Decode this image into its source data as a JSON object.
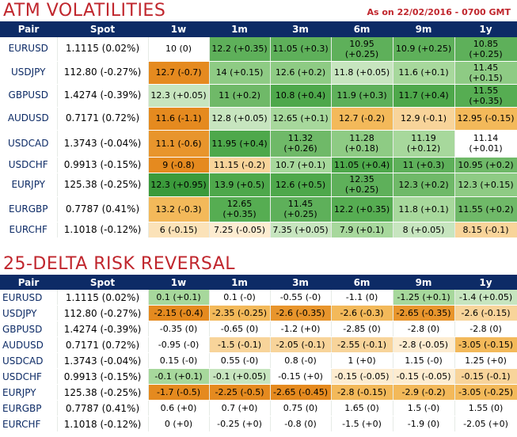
{
  "atm": {
    "title": "ATM VOLATILITIES",
    "as_of": "As on 22/02/2016 - 0700 GMT",
    "headers": [
      "Pair",
      "Spot",
      "1w",
      "1m",
      "3m",
      "6m",
      "9m",
      "1y"
    ],
    "rows": [
      {
        "pair": "EURUSD",
        "spot": "1.1115 (0.02%)",
        "cells": [
          {
            "text": "10 (0)",
            "bg": "#ffffff"
          },
          {
            "text": "12.2 (+0.35)",
            "bg": "#5eb05a"
          },
          {
            "text": "11.05 (+0.3)",
            "bg": "#5eb05a"
          },
          {
            "text": "10.95 (+0.25)",
            "bg": "#5eb05a"
          },
          {
            "text": "10.9 (+0.25)",
            "bg": "#5eb05a"
          },
          {
            "text": "10.85 (+0.25)",
            "bg": "#5eb05a"
          }
        ]
      },
      {
        "pair": "USDJPY",
        "spot": "112.80 (-0.27%)",
        "cells": [
          {
            "text": "12.7 (-0.7)",
            "bg": "#e58a1f"
          },
          {
            "text": "14 (+0.15)",
            "bg": "#8ecb84"
          },
          {
            "text": "12.6 (+0.2)",
            "bg": "#8ecb84"
          },
          {
            "text": "11.8 (+0.05)",
            "bg": "#c7e5bf"
          },
          {
            "text": "11.6 (+0.1)",
            "bg": "#a7d89c"
          },
          {
            "text": "11.45 (+0.15)",
            "bg": "#8ecb84"
          }
        ]
      },
      {
        "pair": "GBPUSD",
        "spot": "1.4274 (-0.39%)",
        "cells": [
          {
            "text": "12.3 (+0.05)",
            "bg": "#c7e5bf"
          },
          {
            "text": "11 (+0.2)",
            "bg": "#6fb968"
          },
          {
            "text": "10.8 (+0.4)",
            "bg": "#4ea84b"
          },
          {
            "text": "11.9 (+0.3)",
            "bg": "#5eb05a"
          },
          {
            "text": "11.7 (+0.4)",
            "bg": "#4ea84b"
          },
          {
            "text": "11.55 (+0.35)",
            "bg": "#56ad52"
          }
        ]
      },
      {
        "pair": "AUDUSD",
        "spot": "0.7171 (0.72%)",
        "cells": [
          {
            "text": "11.6 (-1.1)",
            "bg": "#e58a1f"
          },
          {
            "text": "12.8 (+0.05)",
            "bg": "#c7e5bf"
          },
          {
            "text": "12.65 (+0.1)",
            "bg": "#a7d89c"
          },
          {
            "text": "12.7 (-0.2)",
            "bg": "#f3b95a"
          },
          {
            "text": "12.9 (-0.1)",
            "bg": "#f8d49a"
          },
          {
            "text": "12.95 (-0.15)",
            "bg": "#f3b95a"
          }
        ]
      },
      {
        "pair": "USDCAD",
        "spot": "1.3743 (-0.04%)",
        "cells": [
          {
            "text": "11.1 (-0.6)",
            "bg": "#e8952c"
          },
          {
            "text": "11.95 (+0.4)",
            "bg": "#4ea84b"
          },
          {
            "text": "11.32 (+0.26)",
            "bg": "#6fb968"
          },
          {
            "text": "11.28 (+0.18)",
            "bg": "#8ecb84"
          },
          {
            "text": "11.19 (+0.12)",
            "bg": "#a7d89c"
          },
          {
            "text": "11.14 (+0.01)",
            "bg": "#ffffff"
          }
        ]
      },
      {
        "pair": "USDCHF",
        "spot": "0.9913 (-0.15%)",
        "cells": [
          {
            "text": "9 (-0.8)",
            "bg": "#e58a1f"
          },
          {
            "text": "11.15 (-0.2)",
            "bg": "#f8d49a"
          },
          {
            "text": "10.7 (+0.1)",
            "bg": "#a7d89c"
          },
          {
            "text": "11.05 (+0.4)",
            "bg": "#4ea84b"
          },
          {
            "text": "11 (+0.3)",
            "bg": "#5eb05a"
          },
          {
            "text": "10.95 (+0.2)",
            "bg": "#6fb968"
          }
        ]
      },
      {
        "pair": "EURJPY",
        "spot": "125.38 (-0.25%)",
        "cells": [
          {
            "text": "12.3 (+0.95)",
            "bg": "#3b9a3b"
          },
          {
            "text": "13.9 (+0.5)",
            "bg": "#4ea84b"
          },
          {
            "text": "12.6 (+0.5)",
            "bg": "#4ea84b"
          },
          {
            "text": "12.35 (+0.25)",
            "bg": "#5eb05a"
          },
          {
            "text": "12.3 (+0.2)",
            "bg": "#6fb968"
          },
          {
            "text": "12.3 (+0.15)",
            "bg": "#8ecb84"
          }
        ]
      },
      {
        "pair": "EURGBP",
        "spot": "0.7787 (0.41%)",
        "cells": [
          {
            "text": "13.2 (-0.3)",
            "bg": "#f3b95a"
          },
          {
            "text": "12.65 (+0.35)",
            "bg": "#56ad52"
          },
          {
            "text": "11.45 (+0.25)",
            "bg": "#5eb05a"
          },
          {
            "text": "12.2 (+0.35)",
            "bg": "#56ad52"
          },
          {
            "text": "11.8 (+0.1)",
            "bg": "#a7d89c"
          },
          {
            "text": "11.55 (+0.2)",
            "bg": "#6fb968"
          }
        ]
      },
      {
        "pair": "EURCHF",
        "spot": "1.1018 (-0.12%)",
        "cells": [
          {
            "text": "6 (-0.15)",
            "bg": "#fbe2b8"
          },
          {
            "text": "7.25 (-0.05)",
            "bg": "#fdecd0"
          },
          {
            "text": "7.35 (+0.05)",
            "bg": "#c7e5bf"
          },
          {
            "text": "7.9 (+0.1)",
            "bg": "#a7d89c"
          },
          {
            "text": "8 (+0.05)",
            "bg": "#c7e5bf"
          },
          {
            "text": "8.15 (-0.1)",
            "bg": "#f8d49a"
          }
        ]
      }
    ]
  },
  "rr": {
    "title": "25-DELTA RISK REVERSAL",
    "headers": [
      "Pair",
      "Spot",
      "1w",
      "1m",
      "3m",
      "6m",
      "9m",
      "1y"
    ],
    "rows": [
      {
        "pair": "EURUSD",
        "spot": "1.1115 (0.02%)",
        "cells": [
          {
            "text": "0.1 (+0.1)",
            "bg": "#a7d89c"
          },
          {
            "text": "0.1 (-0)",
            "bg": "#ffffff"
          },
          {
            "text": "-0.55 (-0)",
            "bg": "#ffffff"
          },
          {
            "text": "-1.1 (0)",
            "bg": "#ffffff"
          },
          {
            "text": "-1.25 (+0.1)",
            "bg": "#a7d89c"
          },
          {
            "text": "-1.4 (+0.05)",
            "bg": "#c7e5bf"
          }
        ]
      },
      {
        "pair": "USDJPY",
        "spot": "112.80 (-0.27%)",
        "cells": [
          {
            "text": "-2.15 (-0.4)",
            "bg": "#e58a1f"
          },
          {
            "text": "-2.35 (-0.25)",
            "bg": "#f3b95a"
          },
          {
            "text": "-2.6 (-0.35)",
            "bg": "#e8952c"
          },
          {
            "text": "-2.6 (-0.3)",
            "bg": "#f3b95a"
          },
          {
            "text": "-2.65 (-0.35)",
            "bg": "#e8952c"
          },
          {
            "text": "-2.6 (-0.15)",
            "bg": "#f8d49a"
          }
        ]
      },
      {
        "pair": "GBPUSD",
        "spot": "1.4274 (-0.39%)",
        "cells": [
          {
            "text": "-0.35 (0)",
            "bg": "#ffffff"
          },
          {
            "text": "-0.65 (0)",
            "bg": "#ffffff"
          },
          {
            "text": "-1.2 (+0)",
            "bg": "#ffffff"
          },
          {
            "text": "-2.85 (0)",
            "bg": "#ffffff"
          },
          {
            "text": "-2.8 (0)",
            "bg": "#ffffff"
          },
          {
            "text": "-2.8 (0)",
            "bg": "#ffffff"
          }
        ]
      },
      {
        "pair": "AUDUSD",
        "spot": "0.7171 (0.72%)",
        "cells": [
          {
            "text": "-0.95 (-0)",
            "bg": "#ffffff"
          },
          {
            "text": "-1.5 (-0.1)",
            "bg": "#f8d49a"
          },
          {
            "text": "-2.05 (-0.1)",
            "bg": "#f8d49a"
          },
          {
            "text": "-2.55 (-0.1)",
            "bg": "#f8d49a"
          },
          {
            "text": "-2.8 (-0.05)",
            "bg": "#fdecd0"
          },
          {
            "text": "-3.05 (-0.15)",
            "bg": "#f3b95a"
          }
        ]
      },
      {
        "pair": "USDCAD",
        "spot": "1.3743 (-0.04%)",
        "cells": [
          {
            "text": "0.15 (-0)",
            "bg": "#ffffff"
          },
          {
            "text": "0.55 (-0)",
            "bg": "#ffffff"
          },
          {
            "text": "0.8 (-0)",
            "bg": "#ffffff"
          },
          {
            "text": "1 (+0)",
            "bg": "#ffffff"
          },
          {
            "text": "1.15 (-0)",
            "bg": "#ffffff"
          },
          {
            "text": "1.25 (+0)",
            "bg": "#ffffff"
          }
        ]
      },
      {
        "pair": "USDCHF",
        "spot": "0.9913 (-0.15%)",
        "cells": [
          {
            "text": "-0.1 (+0.1)",
            "bg": "#a7d89c"
          },
          {
            "text": "-0.1 (+0.05)",
            "bg": "#c7e5bf"
          },
          {
            "text": "-0.15 (+0)",
            "bg": "#ffffff"
          },
          {
            "text": "-0.15 (-0.05)",
            "bg": "#fdecd0"
          },
          {
            "text": "-0.15 (-0.05)",
            "bg": "#fdecd0"
          },
          {
            "text": "-0.15 (-0.1)",
            "bg": "#f8d49a"
          }
        ]
      },
      {
        "pair": "EURJPY",
        "spot": "125.38 (-0.25%)",
        "cells": [
          {
            "text": "-1.7 (-0.5)",
            "bg": "#e58a1f"
          },
          {
            "text": "-2.25 (-0.5)",
            "bg": "#e58a1f"
          },
          {
            "text": "-2.65 (-0.45)",
            "bg": "#e58a1f"
          },
          {
            "text": "-2.8 (-0.15)",
            "bg": "#f3b95a"
          },
          {
            "text": "-2.9 (-0.2)",
            "bg": "#f3b95a"
          },
          {
            "text": "-3.05 (-0.25)",
            "bg": "#f3b95a"
          }
        ]
      },
      {
        "pair": "EURGBP",
        "spot": "0.7787 (0.41%)",
        "cells": [
          {
            "text": "0.6 (+0)",
            "bg": "#ffffff"
          },
          {
            "text": "0.7 (+0)",
            "bg": "#ffffff"
          },
          {
            "text": "0.75 (0)",
            "bg": "#ffffff"
          },
          {
            "text": "1.65 (0)",
            "bg": "#ffffff"
          },
          {
            "text": "1.5 (-0)",
            "bg": "#ffffff"
          },
          {
            "text": "1.55 (0)",
            "bg": "#ffffff"
          }
        ]
      },
      {
        "pair": "EURCHF",
        "spot": "1.1018 (-0.12%)",
        "cells": [
          {
            "text": "0 (+0)",
            "bg": "#ffffff"
          },
          {
            "text": "-0.25 (+0)",
            "bg": "#ffffff"
          },
          {
            "text": "-0.8 (0)",
            "bg": "#ffffff"
          },
          {
            "text": "-1.5 (+0)",
            "bg": "#ffffff"
          },
          {
            "text": "-1.9 (0)",
            "bg": "#ffffff"
          },
          {
            "text": "-2.05 (+0)",
            "bg": "#ffffff"
          }
        ]
      }
    ]
  }
}
